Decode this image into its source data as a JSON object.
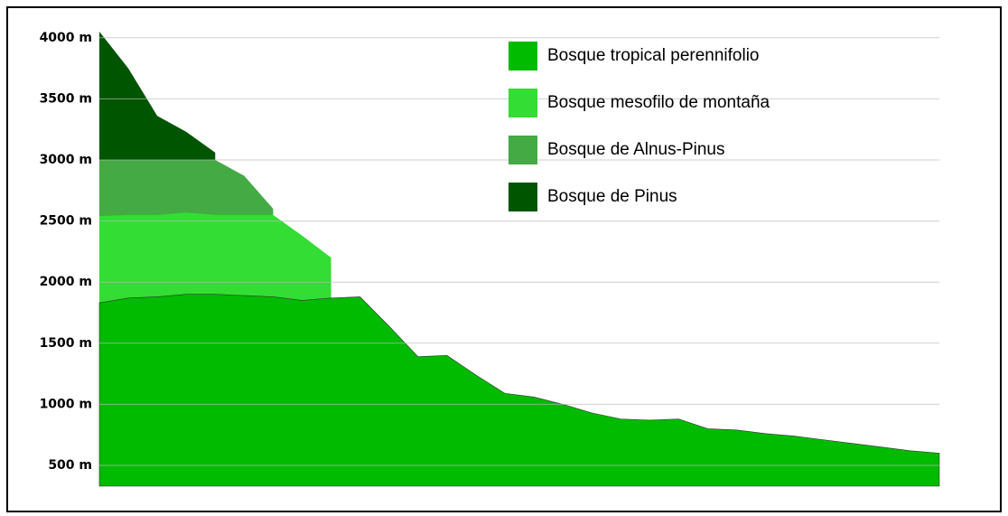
{
  "chart_data": {
    "type": "area",
    "categories": [
      null,
      null,
      null,
      null,
      null,
      null,
      null,
      null,
      null,
      null,
      null,
      null,
      null,
      null,
      null,
      null,
      null,
      null,
      null,
      null,
      null,
      null,
      null,
      null,
      null,
      null,
      null,
      null,
      null,
      null
    ],
    "series": [
      {
        "name": "Bosque tropical perennifolio",
        "color": "#00bb00",
        "values": [
          1830,
          1870,
          1880,
          1900,
          1900,
          1890,
          1880,
          1850,
          1870,
          1880,
          1640,
          1390,
          1400,
          1240,
          1090,
          1060,
          1000,
          930,
          880,
          870,
          880,
          800,
          790,
          760,
          740,
          710,
          680,
          650,
          620,
          600
        ]
      },
      {
        "name": "Bosque mesofilo de montaña",
        "color": "#33dd33",
        "values": [
          2540,
          2550,
          2550,
          2570,
          2550,
          2550,
          2550,
          2380,
          2200,
          null,
          null,
          null,
          null,
          null,
          null,
          null,
          null,
          null,
          null,
          null,
          null,
          null,
          null,
          null,
          null,
          null,
          null,
          null,
          null,
          null
        ]
      },
      {
        "name": "Bosque de Alnus-Pinus",
        "color": "#44aa44",
        "values": [
          3000,
          3000,
          3000,
          3000,
          3000,
          2870,
          2600,
          null,
          null,
          null,
          null,
          null,
          null,
          null,
          null,
          null,
          null,
          null,
          null,
          null,
          null,
          null,
          null,
          null,
          null,
          null,
          null,
          null,
          null,
          null
        ]
      },
      {
        "name": "Bosque de Pinus",
        "color": "#005500",
        "values": [
          4050,
          3750,
          3360,
          3230,
          3060,
          null,
          null,
          null,
          null,
          null,
          null,
          null,
          null,
          null,
          null,
          null,
          null,
          null,
          null,
          null,
          null,
          null,
          null,
          null,
          null,
          null,
          null,
          null,
          null,
          null
        ]
      }
    ],
    "ylim": [
      330,
      4050
    ],
    "yticks": [
      {
        "value": 500,
        "label": "500 m"
      },
      {
        "value": 1000,
        "label": "1000 m"
      },
      {
        "value": 1500,
        "label": "1500 m"
      },
      {
        "value": 2000,
        "label": "2000 m"
      },
      {
        "value": 2500,
        "label": "2500 m"
      },
      {
        "value": 3000,
        "label": "3000 m"
      },
      {
        "value": 3500,
        "label": "3500 m"
      },
      {
        "value": 4000,
        "label": "4000 m"
      }
    ],
    "grid": true,
    "legend": "top-right"
  }
}
